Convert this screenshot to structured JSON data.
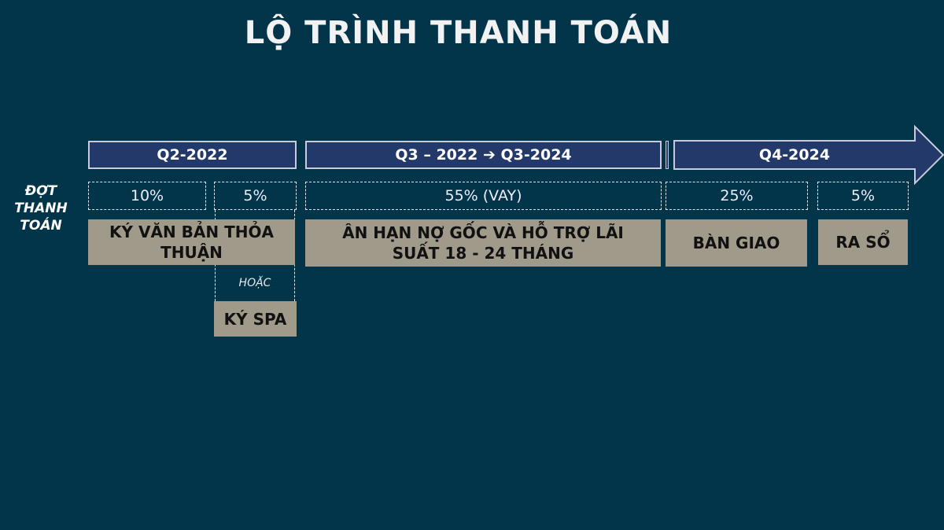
{
  "title": "LỘ TRÌNH THANH TOÁN",
  "row_label": "ĐỢT THANH TOÁN",
  "periods": [
    "Q2-2022",
    "Q3 – 2022 ➔ Q3-2024",
    "Q4-2024"
  ],
  "payments": [
    "10%",
    "5%",
    "55% (VAY)",
    "25%",
    "5%"
  ],
  "milestones": [
    "KÝ VĂN BẢN THỎA THUẬN",
    "ÂN HẠN NỢ GỐC VÀ HỖ TRỢ LÃI SUẤT 18 - 24 THÁNG",
    "BÀN GIAO",
    "RA SỔ"
  ],
  "alternative_label": "HOẶC",
  "alternative_milestone": "KÝ SPA",
  "colors": {
    "background": "#02344a",
    "header": "#22396a",
    "milestone": "#a09a8a"
  }
}
